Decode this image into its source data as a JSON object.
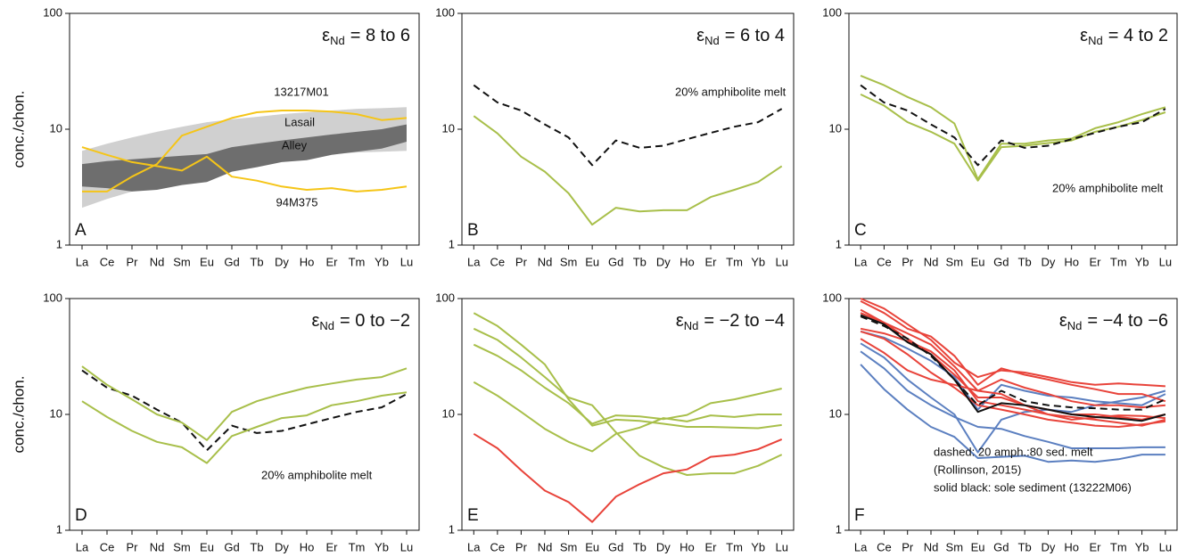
{
  "chart_data": [
    {
      "type": "line",
      "panel_label": "A",
      "title_symbol": "ε",
      "title_subscript": "Nd",
      "title": "= 8 to 6",
      "ylabel": "conc./chon.",
      "log": true,
      "categories": [
        "La",
        "Ce",
        "Pr",
        "Nd",
        "Sm",
        "Eu",
        "Gd",
        "Tb",
        "Dy",
        "Ho",
        "Er",
        "Tm",
        "Yb",
        "Lu"
      ],
      "ylim": [
        1,
        100
      ],
      "yticks": [
        1,
        10,
        100
      ],
      "series": [
        {
          "name": "Lasail",
          "color": "#d0d0d0",
          "lower": [
            2.1,
            2.5,
            2.9,
            3.3,
            3.7,
            4.2,
            4.8,
            5.2,
            5.6,
            5.9,
            6.1,
            6.3,
            6.4,
            6.5
          ],
          "upper": [
            6.5,
            7.5,
            8.5,
            9.5,
            10.5,
            11.5,
            12.2,
            12.8,
            13.5,
            14,
            14.5,
            15,
            15.2,
            15.5
          ]
        },
        {
          "name": "Alley",
          "color": "#6e6e6e",
          "lower": [
            3.2,
            3.1,
            2.9,
            3.0,
            3.3,
            3.5,
            4.3,
            4.7,
            5.2,
            5.4,
            6.0,
            6.4,
            6.8,
            7.8
          ],
          "upper": [
            5,
            5.3,
            5.5,
            5.7,
            5.9,
            6.1,
            7,
            7.5,
            8,
            8.5,
            9,
            9.5,
            10,
            11
          ]
        },
        {
          "name": "13217M01",
          "color": "#f5c518",
          "values": [
            2.9,
            2.9,
            3.9,
            5,
            8.8,
            10.5,
            12.5,
            14,
            14.5,
            14.5,
            14.2,
            13.5,
            12,
            12.5
          ]
        },
        {
          "name": "94M375",
          "color": "#f5c518",
          "values": [
            7,
            6,
            5.2,
            4.8,
            4.4,
            5.8,
            3.9,
            3.6,
            3.2,
            3.0,
            3.1,
            2.9,
            3.0,
            3.2
          ]
        }
      ]
    },
    {
      "type": "line",
      "panel_label": "B",
      "title_symbol": "ε",
      "title_subscript": "Nd",
      "title": "= 6 to 4",
      "log": true,
      "categories": [
        "La",
        "Ce",
        "Pr",
        "Nd",
        "Sm",
        "Eu",
        "Gd",
        "Tb",
        "Dy",
        "Ho",
        "Er",
        "Tm",
        "Yb",
        "Lu"
      ],
      "ylim": [
        1,
        100
      ],
      "yticks": [
        1,
        10,
        100
      ],
      "annotations": [
        "20% amphibolite melt"
      ],
      "series": [
        {
          "color": "#111111",
          "dashed": true,
          "values": [
            24,
            17,
            14.5,
            11,
            8.5,
            4.9,
            8,
            6.9,
            7.2,
            8.2,
            9.3,
            10.5,
            11.5,
            15
          ]
        },
        {
          "color": "#a8bf4a",
          "values": [
            13,
            9.2,
            5.8,
            4.3,
            2.8,
            1.5,
            2.1,
            1.95,
            2.0,
            2.0,
            2.6,
            3.0,
            3.5,
            4.8
          ]
        }
      ]
    },
    {
      "type": "line",
      "panel_label": "C",
      "title_symbol": "ε",
      "title_subscript": "Nd",
      "title": "= 4 to 2",
      "log": true,
      "categories": [
        "La",
        "Ce",
        "Pr",
        "Nd",
        "Sm",
        "Eu",
        "Gd",
        "Tb",
        "Dy",
        "Ho",
        "Er",
        "Tm",
        "Yb",
        "Lu"
      ],
      "ylim": [
        1,
        100
      ],
      "yticks": [
        1,
        10,
        100
      ],
      "annotations": [
        "20% amphibolite melt"
      ],
      "series": [
        {
          "color": "#a8bf4a",
          "values": [
            29,
            24,
            19,
            15.5,
            11.2,
            3.7,
            7.5,
            7.5,
            8,
            8.3,
            10.2,
            11.5,
            13.5,
            15.5
          ]
        },
        {
          "color": "#a8bf4a",
          "values": [
            20,
            16,
            11.5,
            9.5,
            7.5,
            3.6,
            7,
            7.2,
            7.6,
            8,
            9.5,
            10.5,
            12,
            14
          ]
        },
        {
          "color": "#111111",
          "dashed": true,
          "values": [
            24,
            17,
            14.5,
            11,
            8.5,
            4.9,
            8,
            6.9,
            7.2,
            8.2,
            9.3,
            10.5,
            11.5,
            15
          ]
        }
      ]
    },
    {
      "type": "line",
      "panel_label": "D",
      "title_symbol": "ε",
      "title_subscript": "Nd",
      "title": "= 0 to −2",
      "ylabel": "conc./chon.",
      "log": true,
      "categories": [
        "La",
        "Ce",
        "Pr",
        "Nd",
        "Sm",
        "Eu",
        "Gd",
        "Tb",
        "Dy",
        "Ho",
        "Er",
        "Tm",
        "Yb",
        "Lu"
      ],
      "ylim": [
        1,
        100
      ],
      "yticks": [
        1,
        10,
        100
      ],
      "annotations": [
        "20% amphibolite melt"
      ],
      "series": [
        {
          "color": "#111111",
          "dashed": true,
          "values": [
            24,
            17,
            14.5,
            11,
            8.5,
            4.9,
            8,
            6.9,
            7.2,
            8.2,
            9.3,
            10.5,
            11.5,
            15
          ]
        },
        {
          "color": "#a8bf4a",
          "values": [
            26,
            18,
            13.5,
            10,
            8.5,
            6.0,
            10.5,
            13,
            15,
            17,
            18.5,
            20,
            21,
            25
          ]
        },
        {
          "color": "#a8bf4a",
          "values": [
            13,
            9.5,
            7.2,
            5.8,
            5.2,
            3.8,
            6.5,
            7.8,
            9.3,
            9.8,
            12,
            13,
            14.5,
            15.5
          ]
        }
      ]
    },
    {
      "type": "line",
      "panel_label": "E",
      "title_symbol": "ε",
      "title_subscript": "Nd",
      "title": "= −2 to −4",
      "log": true,
      "categories": [
        "La",
        "Ce",
        "Pr",
        "Nd",
        "Sm",
        "Eu",
        "Gd",
        "Tb",
        "Dy",
        "Ho",
        "Er",
        "Tm",
        "Yb",
        "Lu"
      ],
      "ylim": [
        1,
        100
      ],
      "yticks": [
        1,
        10,
        100
      ],
      "series": [
        {
          "color": "#a8bf4a",
          "values": [
            75,
            58,
            40,
            27,
            13.5,
            8,
            9,
            8.8,
            8.3,
            7.8,
            7.8,
            7.7,
            7.6,
            8.1
          ]
        },
        {
          "color": "#a8bf4a",
          "values": [
            55,
            44,
            31,
            21,
            14,
            12,
            7,
            4.4,
            3.5,
            3.0,
            3.1,
            3.1,
            3.6,
            4.5
          ]
        },
        {
          "color": "#a8bf4a",
          "values": [
            40,
            32,
            24,
            17,
            12.5,
            8.3,
            9.8,
            9.6,
            9.1,
            9.9,
            12.5,
            13.5,
            15,
            16.7
          ]
        },
        {
          "color": "#a8bf4a",
          "values": [
            19,
            14.5,
            10.5,
            7.5,
            5.8,
            4.8,
            6.8,
            7.7,
            9.3,
            8.7,
            9.8,
            9.5,
            10,
            10
          ]
        },
        {
          "color": "#e8433a",
          "values": [
            6.8,
            5.1,
            3.3,
            2.2,
            1.75,
            1.18,
            1.95,
            2.5,
            3.1,
            3.35,
            4.3,
            4.5,
            5.0,
            6.1
          ]
        }
      ]
    },
    {
      "type": "line",
      "panel_label": "F",
      "title_symbol": "ε",
      "title_subscript": "Nd",
      "title": "= −4 to −6",
      "log": true,
      "categories": [
        "La",
        "Ce",
        "Pr",
        "Nd",
        "Sm",
        "Eu",
        "Gd",
        "Tb",
        "Dy",
        "Ho",
        "Er",
        "Tm",
        "Yb",
        "Lu"
      ],
      "ylim": [
        1,
        100
      ],
      "yticks": [
        1,
        10,
        100
      ],
      "annotations": [
        "dashed: 20 amph.:80 sed. melt",
        "(Rollinson, 2015)",
        "solid black: sole sediment (13222M06)"
      ],
      "series": [
        {
          "color": "#5b7fc0",
          "values": [
            52,
            46,
            37,
            29,
            21,
            11,
            18,
            16,
            14.5,
            14,
            13,
            12.5,
            12,
            15
          ]
        },
        {
          "color": "#5b7fc0",
          "values": [
            41,
            31,
            20,
            14,
            10,
            4.7,
            9,
            10.5,
            11,
            10.5,
            12,
            13,
            14,
            16
          ]
        },
        {
          "color": "#5b7fc0",
          "values": [
            27,
            16.5,
            11,
            7.8,
            6.4,
            4.2,
            4.3,
            4.4,
            3.9,
            4.0,
            3.9,
            4.1,
            4.5,
            4.5
          ]
        },
        {
          "color": "#5b7fc0",
          "values": [
            35,
            25,
            16,
            12,
            9.5,
            7.8,
            7.5,
            6.5,
            5.8,
            5.1,
            5.1,
            5.1,
            5.2,
            5.2
          ]
        },
        {
          "color": "#e8433a",
          "values": [
            100,
            82,
            60,
            44,
            28,
            21,
            24,
            23,
            21,
            19,
            18,
            18.5,
            18,
            17.5
          ]
        },
        {
          "color": "#e8433a",
          "values": [
            95,
            75,
            55,
            47,
            32,
            18,
            25,
            22,
            20,
            18,
            16.5,
            15,
            15,
            13
          ]
        },
        {
          "color": "#e8433a",
          "values": [
            80,
            62,
            50,
            40,
            26,
            16,
            20,
            17,
            15,
            13,
            12,
            12,
            11.5,
            12
          ]
        },
        {
          "color": "#e8433a",
          "values": [
            75,
            62,
            45,
            33,
            22,
            14,
            14,
            12,
            11,
            10,
            10,
            9.5,
            9,
            10
          ]
        },
        {
          "color": "#e8433a",
          "values": [
            55,
            50,
            43,
            35,
            24,
            13,
            12,
            11,
            10,
            9.5,
            9,
            8.5,
            8,
            9
          ]
        },
        {
          "color": "#e8433a",
          "values": [
            52,
            45,
            33,
            23,
            17,
            12,
            11,
            10,
            9,
            8.5,
            8,
            7.8,
            8.2,
            8.7
          ]
        },
        {
          "color": "#e8433a",
          "values": [
            45,
            34,
            24,
            20,
            18,
            16,
            15,
            12,
            10,
            9,
            9.4,
            9.8,
            9.7,
            9.3
          ]
        },
        {
          "color": "#111111",
          "dashed": true,
          "values": [
            70,
            58,
            45,
            32,
            20,
            12,
            16,
            13,
            12,
            11.5,
            11.3,
            11,
            11,
            13.5
          ]
        },
        {
          "color": "#111111",
          "values": [
            72,
            60,
            42,
            33,
            20,
            10.5,
            12.5,
            12,
            11,
            10,
            9.5,
            9.2,
            8.8,
            10
          ]
        }
      ]
    }
  ]
}
